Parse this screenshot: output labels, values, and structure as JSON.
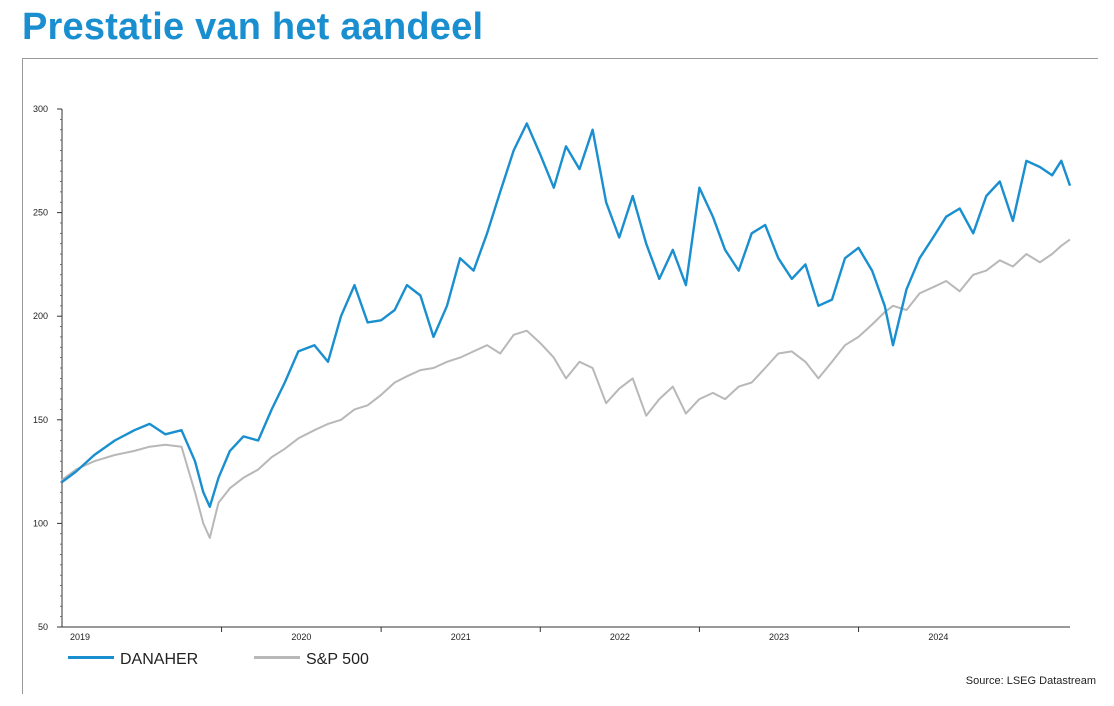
{
  "page": {
    "title": "Prestatie van het aandeel"
  },
  "source": "Source: LSEG Datastream",
  "chart_data": {
    "type": "line",
    "title": "",
    "xlabel": "",
    "ylabel": "",
    "x_ticks": [
      "2019",
      "2020",
      "2021",
      "2022",
      "2023",
      "2024"
    ],
    "y_ticks": [
      50,
      100,
      150,
      200,
      250,
      300
    ],
    "ylim": [
      50,
      300
    ],
    "grid": false,
    "legend": "bottom-left",
    "series": [
      {
        "name": "DANAHER",
        "color": "#1a8fd0",
        "values": [
          [
            "2018-12-31",
            120
          ],
          [
            "2019-02-01",
            125
          ],
          [
            "2019-03-15",
            133
          ],
          [
            "2019-05-01",
            140
          ],
          [
            "2019-06-15",
            145
          ],
          [
            "2019-07-20",
            148
          ],
          [
            "2019-08-25",
            143
          ],
          [
            "2019-10-01",
            145
          ],
          [
            "2019-11-01",
            130
          ],
          [
            "2019-11-20",
            115
          ],
          [
            "2019-12-05",
            108
          ],
          [
            "2019-12-25",
            122
          ],
          [
            "2020-01-20",
            135
          ],
          [
            "2020-02-20",
            142
          ],
          [
            "2020-03-25",
            140
          ],
          [
            "2020-04-25",
            155
          ],
          [
            "2020-05-25",
            168
          ],
          [
            "2020-06-25",
            183
          ],
          [
            "2020-08-01",
            186
          ],
          [
            "2020-09-01",
            178
          ],
          [
            "2020-10-01",
            200
          ],
          [
            "2020-11-01",
            215
          ],
          [
            "2020-12-01",
            197
          ],
          [
            "2021-01-01",
            198
          ],
          [
            "2021-02-01",
            203
          ],
          [
            "2021-03-01",
            215
          ],
          [
            "2021-04-01",
            210
          ],
          [
            "2021-05-01",
            190
          ],
          [
            "2021-06-01",
            205
          ],
          [
            "2021-07-01",
            228
          ],
          [
            "2021-08-01",
            222
          ],
          [
            "2021-09-01",
            240
          ],
          [
            "2021-10-01",
            260
          ],
          [
            "2021-11-01",
            280
          ],
          [
            "2021-12-01",
            293
          ],
          [
            "2022-01-01",
            278
          ],
          [
            "2022-02-01",
            262
          ],
          [
            "2022-03-01",
            282
          ],
          [
            "2022-04-01",
            271
          ],
          [
            "2022-05-01",
            290
          ],
          [
            "2022-06-01",
            255
          ],
          [
            "2022-07-01",
            238
          ],
          [
            "2022-08-01",
            258
          ],
          [
            "2022-09-01",
            235
          ],
          [
            "2022-10-01",
            218
          ],
          [
            "2022-11-01",
            232
          ],
          [
            "2022-12-01",
            215
          ],
          [
            "2023-01-01",
            262
          ],
          [
            "2023-02-01",
            248
          ],
          [
            "2023-03-01",
            232
          ],
          [
            "2023-04-01",
            222
          ],
          [
            "2023-05-01",
            240
          ],
          [
            "2023-06-01",
            244
          ],
          [
            "2023-07-01",
            228
          ],
          [
            "2023-08-01",
            218
          ],
          [
            "2023-09-01",
            225
          ],
          [
            "2023-10-01",
            205
          ],
          [
            "2023-11-01",
            208
          ],
          [
            "2023-12-01",
            228
          ],
          [
            "2024-01-01",
            233
          ],
          [
            "2024-02-01",
            222
          ],
          [
            "2024-03-01",
            205
          ],
          [
            "2024-03-20",
            186
          ],
          [
            "2024-04-20",
            213
          ],
          [
            "2024-05-20",
            228
          ],
          [
            "2024-06-20",
            238
          ],
          [
            "2024-07-20",
            248
          ],
          [
            "2024-08-20",
            252
          ],
          [
            "2024-09-20",
            240
          ],
          [
            "2024-10-20",
            258
          ],
          [
            "2024-11-20",
            265
          ],
          [
            "2024-12-20",
            246
          ],
          [
            "2025-01-20",
            275
          ],
          [
            "2025-02-20",
            272
          ],
          [
            "2025-03-20",
            268
          ],
          [
            "2025-04-10",
            275
          ],
          [
            "2025-04-30",
            263
          ]
        ]
      },
      {
        "name": "S&P 500",
        "color": "#b8b8b8",
        "values": [
          [
            "2018-12-31",
            121
          ],
          [
            "2019-02-01",
            126
          ],
          [
            "2019-03-15",
            130
          ],
          [
            "2019-05-01",
            133
          ],
          [
            "2019-06-15",
            135
          ],
          [
            "2019-07-20",
            137
          ],
          [
            "2019-08-25",
            138
          ],
          [
            "2019-10-01",
            137
          ],
          [
            "2019-11-01",
            115
          ],
          [
            "2019-11-20",
            100
          ],
          [
            "2019-12-05",
            93
          ],
          [
            "2019-12-25",
            110
          ],
          [
            "2020-01-20",
            117
          ],
          [
            "2020-02-20",
            122
          ],
          [
            "2020-03-25",
            126
          ],
          [
            "2020-04-25",
            132
          ],
          [
            "2020-05-25",
            136
          ],
          [
            "2020-06-25",
            141
          ],
          [
            "2020-08-01",
            145
          ],
          [
            "2020-09-01",
            148
          ],
          [
            "2020-10-01",
            150
          ],
          [
            "2020-11-01",
            155
          ],
          [
            "2020-12-01",
            157
          ],
          [
            "2021-01-01",
            162
          ],
          [
            "2021-02-01",
            168
          ],
          [
            "2021-03-01",
            171
          ],
          [
            "2021-04-01",
            174
          ],
          [
            "2021-05-01",
            175
          ],
          [
            "2021-06-01",
            178
          ],
          [
            "2021-07-01",
            180
          ],
          [
            "2021-08-01",
            183
          ],
          [
            "2021-09-01",
            186
          ],
          [
            "2021-10-01",
            182
          ],
          [
            "2021-11-01",
            191
          ],
          [
            "2021-12-01",
            193
          ],
          [
            "2022-01-01",
            187
          ],
          [
            "2022-02-01",
            180
          ],
          [
            "2022-03-01",
            170
          ],
          [
            "2022-04-01",
            178
          ],
          [
            "2022-05-01",
            175
          ],
          [
            "2022-06-01",
            158
          ],
          [
            "2022-07-01",
            165
          ],
          [
            "2022-08-01",
            170
          ],
          [
            "2022-09-01",
            152
          ],
          [
            "2022-10-01",
            160
          ],
          [
            "2022-11-01",
            166
          ],
          [
            "2022-12-01",
            153
          ],
          [
            "2023-01-01",
            160
          ],
          [
            "2023-02-01",
            163
          ],
          [
            "2023-03-01",
            160
          ],
          [
            "2023-04-01",
            166
          ],
          [
            "2023-05-01",
            168
          ],
          [
            "2023-06-01",
            175
          ],
          [
            "2023-07-01",
            182
          ],
          [
            "2023-08-01",
            183
          ],
          [
            "2023-09-01",
            178
          ],
          [
            "2023-10-01",
            170
          ],
          [
            "2023-11-01",
            178
          ],
          [
            "2023-12-01",
            186
          ],
          [
            "2024-01-01",
            190
          ],
          [
            "2024-02-01",
            196
          ],
          [
            "2024-03-01",
            202
          ],
          [
            "2024-03-20",
            205
          ],
          [
            "2024-04-20",
            203
          ],
          [
            "2024-05-20",
            211
          ],
          [
            "2024-06-20",
            214
          ],
          [
            "2024-07-20",
            217
          ],
          [
            "2024-08-20",
            212
          ],
          [
            "2024-09-20",
            220
          ],
          [
            "2024-10-20",
            222
          ],
          [
            "2024-11-20",
            227
          ],
          [
            "2024-12-20",
            224
          ],
          [
            "2025-01-20",
            230
          ],
          [
            "2025-02-20",
            226
          ],
          [
            "2025-03-20",
            230
          ],
          [
            "2025-04-10",
            234
          ],
          [
            "2025-04-30",
            237
          ]
        ]
      }
    ]
  }
}
